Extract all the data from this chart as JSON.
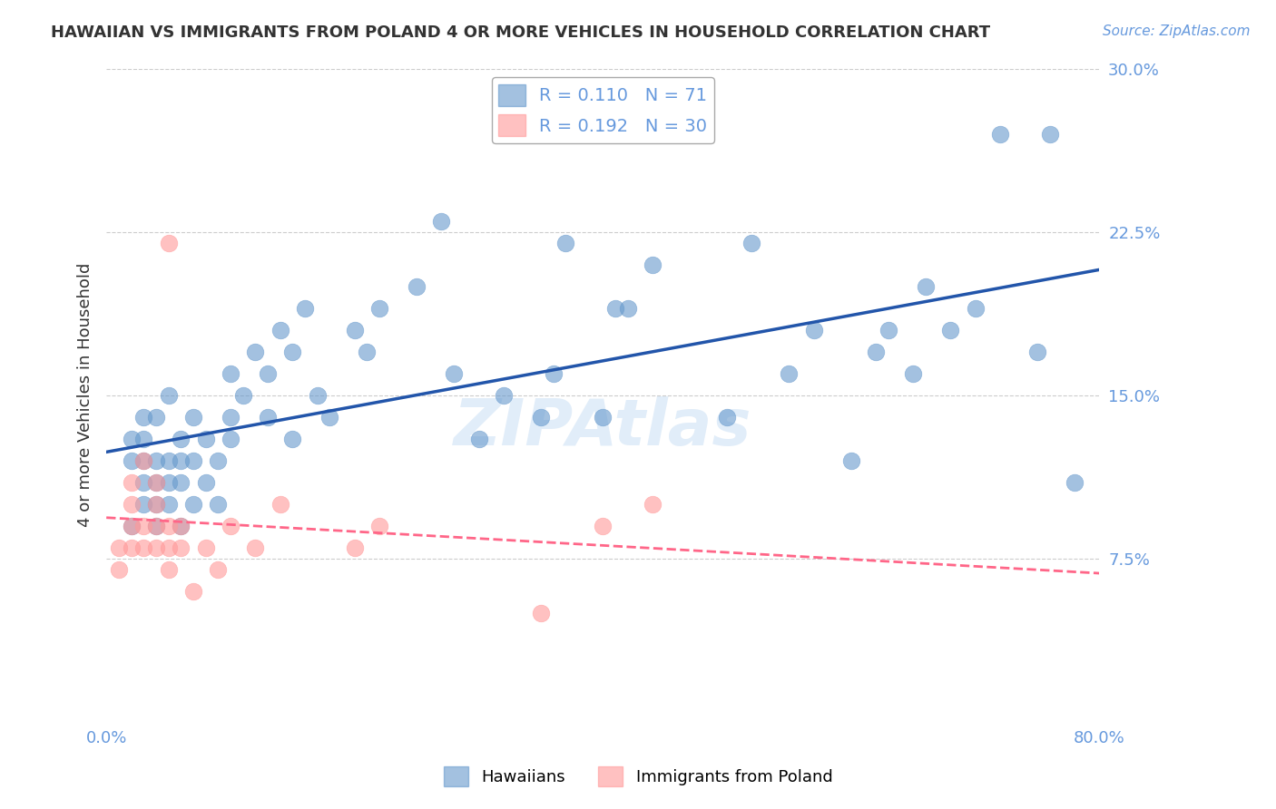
{
  "title": "HAWAIIAN VS IMMIGRANTS FROM POLAND 4 OR MORE VEHICLES IN HOUSEHOLD CORRELATION CHART",
  "source": "Source: ZipAtlas.com",
  "xlabel": "",
  "ylabel": "4 or more Vehicles in Household",
  "xlim": [
    0.0,
    0.8
  ],
  "ylim": [
    0.0,
    0.3
  ],
  "yticks": [
    0.075,
    0.15,
    0.225,
    0.3
  ],
  "ytick_labels": [
    "7.5%",
    "15.0%",
    "22.5%",
    "30.0%"
  ],
  "xticks": [
    0.0,
    0.1,
    0.2,
    0.3,
    0.4,
    0.5,
    0.6,
    0.7,
    0.8
  ],
  "xtick_labels": [
    "0.0%",
    "",
    "",
    "",
    "",
    "",
    "",
    "",
    "80.0%"
  ],
  "hawaiian_color": "#6699CC",
  "poland_color": "#FF9999",
  "reg_line_hawaiian_color": "#2255AA",
  "reg_line_poland_color": "#FF6688",
  "background_color": "#FFFFFF",
  "grid_color": "#CCCCCC",
  "title_color": "#333333",
  "axis_color": "#6699DD",
  "watermark": "ZIPAtlas",
  "watermark_color": "#AACCEE",
  "legend_r_hawaiian": "R = 0.110",
  "legend_n_hawaiian": "N = 71",
  "legend_r_poland": "R = 0.192",
  "legend_n_poland": "N = 30",
  "hawaiians_label": "Hawaiians",
  "poland_label": "Immigrants from Poland",
  "hawaiian_x": [
    0.02,
    0.02,
    0.02,
    0.03,
    0.03,
    0.03,
    0.03,
    0.03,
    0.04,
    0.04,
    0.04,
    0.04,
    0.04,
    0.05,
    0.05,
    0.05,
    0.05,
    0.06,
    0.06,
    0.06,
    0.06,
    0.07,
    0.07,
    0.07,
    0.08,
    0.08,
    0.09,
    0.09,
    0.1,
    0.1,
    0.1,
    0.11,
    0.12,
    0.13,
    0.13,
    0.14,
    0.15,
    0.15,
    0.16,
    0.17,
    0.18,
    0.2,
    0.21,
    0.22,
    0.25,
    0.27,
    0.28,
    0.3,
    0.32,
    0.35,
    0.36,
    0.37,
    0.4,
    0.41,
    0.42,
    0.44,
    0.5,
    0.52,
    0.55,
    0.57,
    0.6,
    0.62,
    0.63,
    0.65,
    0.66,
    0.68,
    0.7,
    0.72,
    0.75,
    0.76,
    0.78
  ],
  "hawaiian_y": [
    0.12,
    0.13,
    0.09,
    0.1,
    0.11,
    0.12,
    0.13,
    0.14,
    0.09,
    0.1,
    0.11,
    0.12,
    0.14,
    0.1,
    0.11,
    0.12,
    0.15,
    0.09,
    0.11,
    0.12,
    0.13,
    0.1,
    0.12,
    0.14,
    0.11,
    0.13,
    0.1,
    0.12,
    0.13,
    0.14,
    0.16,
    0.15,
    0.17,
    0.16,
    0.14,
    0.18,
    0.17,
    0.13,
    0.19,
    0.15,
    0.14,
    0.18,
    0.17,
    0.19,
    0.2,
    0.23,
    0.16,
    0.13,
    0.15,
    0.14,
    0.16,
    0.22,
    0.14,
    0.19,
    0.19,
    0.21,
    0.14,
    0.22,
    0.16,
    0.18,
    0.12,
    0.17,
    0.18,
    0.16,
    0.2,
    0.18,
    0.19,
    0.27,
    0.17,
    0.27,
    0.11
  ],
  "poland_x": [
    0.01,
    0.01,
    0.02,
    0.02,
    0.02,
    0.02,
    0.03,
    0.03,
    0.03,
    0.04,
    0.04,
    0.04,
    0.04,
    0.05,
    0.05,
    0.05,
    0.05,
    0.06,
    0.06,
    0.07,
    0.08,
    0.09,
    0.1,
    0.12,
    0.14,
    0.2,
    0.22,
    0.35,
    0.4,
    0.44
  ],
  "poland_y": [
    0.08,
    0.07,
    0.09,
    0.08,
    0.1,
    0.11,
    0.08,
    0.09,
    0.12,
    0.08,
    0.09,
    0.1,
    0.11,
    0.07,
    0.08,
    0.09,
    0.22,
    0.08,
    0.09,
    0.06,
    0.08,
    0.07,
    0.09,
    0.08,
    0.1,
    0.08,
    0.09,
    0.05,
    0.09,
    0.1
  ]
}
